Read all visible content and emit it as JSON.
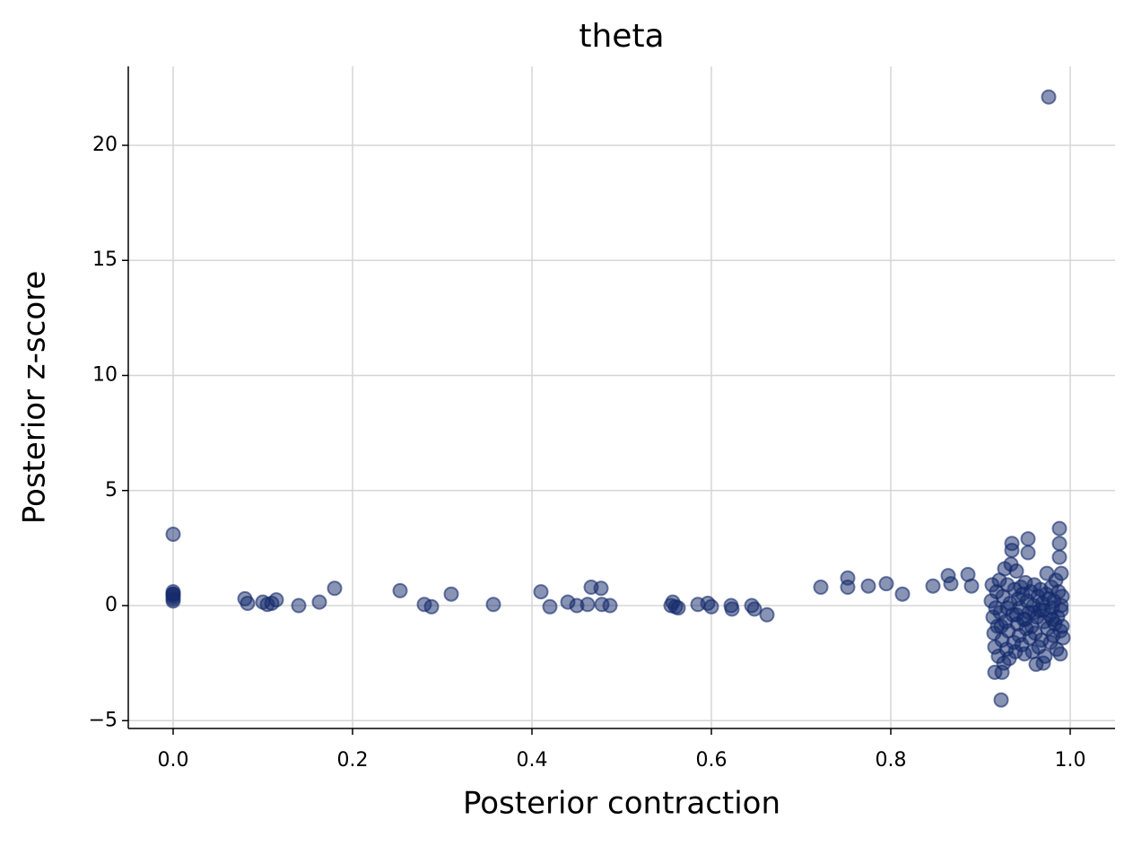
{
  "chart_data": {
    "type": "scatter",
    "title": "theta",
    "x_label": "Posterior contraction",
    "y_label": "Posterior z-score",
    "color": "#132a6b",
    "grid": true,
    "xlim": [
      -0.05,
      1.05
    ],
    "ylim": [
      -5.34,
      23.43
    ],
    "xticks": [
      {
        "value": 0,
        "label": "0.0"
      },
      {
        "value": 0.2,
        "label": "0.2"
      },
      {
        "value": 0.4,
        "label": "0.4"
      },
      {
        "value": 0.6,
        "label": "0.6"
      },
      {
        "value": 0.8,
        "label": "0.8"
      },
      {
        "value": 1,
        "label": "1.0"
      }
    ],
    "yticks": [
      {
        "value": -5,
        "label": "−5"
      },
      0,
      5,
      10,
      15,
      20
    ],
    "x": [
      0,
      0,
      0,
      0,
      0,
      0,
      0,
      0.08,
      0.083,
      0.1,
      0.105,
      0.11,
      0.115,
      0.14,
      0.163,
      0.18,
      0.253,
      0.28,
      0.288,
      0.31,
      0.357,
      0.41,
      0.42,
      0.44,
      0.45,
      0.462,
      0.466,
      0.477,
      0.478,
      0.487,
      0.555,
      0.557,
      0.56,
      0.563,
      0.585,
      0.596,
      0.6,
      0.622,
      0.623,
      0.645,
      0.648,
      0.662,
      0.722,
      0.752,
      0.752,
      0.775,
      0.795,
      0.813,
      0.847,
      0.864,
      0.867,
      0.886,
      0.89,
      0.976,
      0.923,
      0.988,
      0.988,
      0.953,
      0.935,
      0.953,
      0.935,
      0.962,
      0.97,
      0.916,
      0.924,
      0.99,
      0.974,
      0.912,
      0.914,
      0.915,
      0.916,
      0.918,
      0.919,
      0.92,
      0.921,
      0.922,
      0.924,
      0.925,
      0.926,
      0.927,
      0.928,
      0.929,
      0.93,
      0.931,
      0.932,
      0.933,
      0.934,
      0.936,
      0.937,
      0.938,
      0.939,
      0.94,
      0.941,
      0.942,
      0.943,
      0.944,
      0.945,
      0.946,
      0.947,
      0.948,
      0.949,
      0.95,
      0.951,
      0.952,
      0.954,
      0.955,
      0.956,
      0.957,
      0.958,
      0.959,
      0.96,
      0.961,
      0.963,
      0.964,
      0.965,
      0.966,
      0.967,
      0.968,
      0.969,
      0.971,
      0.972,
      0.973,
      0.975,
      0.976,
      0.977,
      0.978,
      0.979,
      0.98,
      0.981,
      0.982,
      0.983,
      0.984,
      0.985,
      0.986,
      0.987,
      0.989,
      0.99,
      0.991,
      0.992,
      0.991,
      0.988,
      0.989,
      0.913,
      0.917,
      0.923,
      0.93,
      0.94,
      0.95,
      0.96,
      0.97,
      0.98,
      0.99
    ],
    "values": [
      3.1,
      0.6,
      0.5,
      0.4,
      0.3,
      0.2,
      0.5,
      0.3,
      0.1,
      0.15,
      0.05,
      0.1,
      0.25,
      0.0,
      0.15,
      0.75,
      0.65,
      0.05,
      -0.05,
      0.5,
      0.05,
      0.6,
      -0.05,
      0.15,
      0.0,
      0.05,
      0.8,
      0.75,
      0.05,
      0.0,
      0.0,
      0.15,
      -0.05,
      -0.1,
      0.05,
      0.1,
      -0.05,
      0.0,
      -0.15,
      0.0,
      -0.15,
      -0.4,
      0.8,
      1.2,
      0.8,
      0.85,
      0.95,
      0.5,
      0.85,
      1.3,
      0.95,
      1.35,
      0.85,
      22.1,
      -4.1,
      3.35,
      2.7,
      2.9,
      2.7,
      2.3,
      2.4,
      -2.55,
      -2.5,
      -2.9,
      -2.9,
      1.4,
      1.4,
      0.2,
      -0.5,
      -1.2,
      -1.8,
      0.6,
      -0.9,
      -2.2,
      1.1,
      -0.3,
      -1.5,
      0.4,
      -2.5,
      1.6,
      -0.7,
      -1.9,
      0.9,
      -1.1,
      -2.3,
      0.1,
      1.8,
      -0.4,
      -1.6,
      0.7,
      -2.0,
      1.5,
      -0.8,
      0.3,
      -1.3,
      -0.1,
      0.8,
      -1.7,
      0.5,
      -0.6,
      -2.1,
      1.0,
      -1.0,
      0.2,
      -0.3,
      -1.4,
      0.6,
      -0.9,
      -2.0,
      0.0,
      0.9,
      -1.2,
      -0.5,
      0.4,
      -1.8,
      -0.2,
      0.7,
      -1.5,
      0.1,
      -0.7,
      -2.2,
      0.5,
      -1.0,
      0.3,
      -0.4,
      -1.6,
      0.8,
      -0.1,
      -1.3,
      0.2,
      -0.8,
      1.1,
      -1.9,
      -0.5,
      0.6,
      -1.1,
      -0.2,
      0.4,
      -1.4,
      -0.9,
      2.1,
      -2.1,
      0.9,
      -0.1,
      -0.9,
      -0.1,
      -0.4,
      -0.6,
      -0.3,
      -0.2,
      -0.6,
      0.0
    ]
  }
}
